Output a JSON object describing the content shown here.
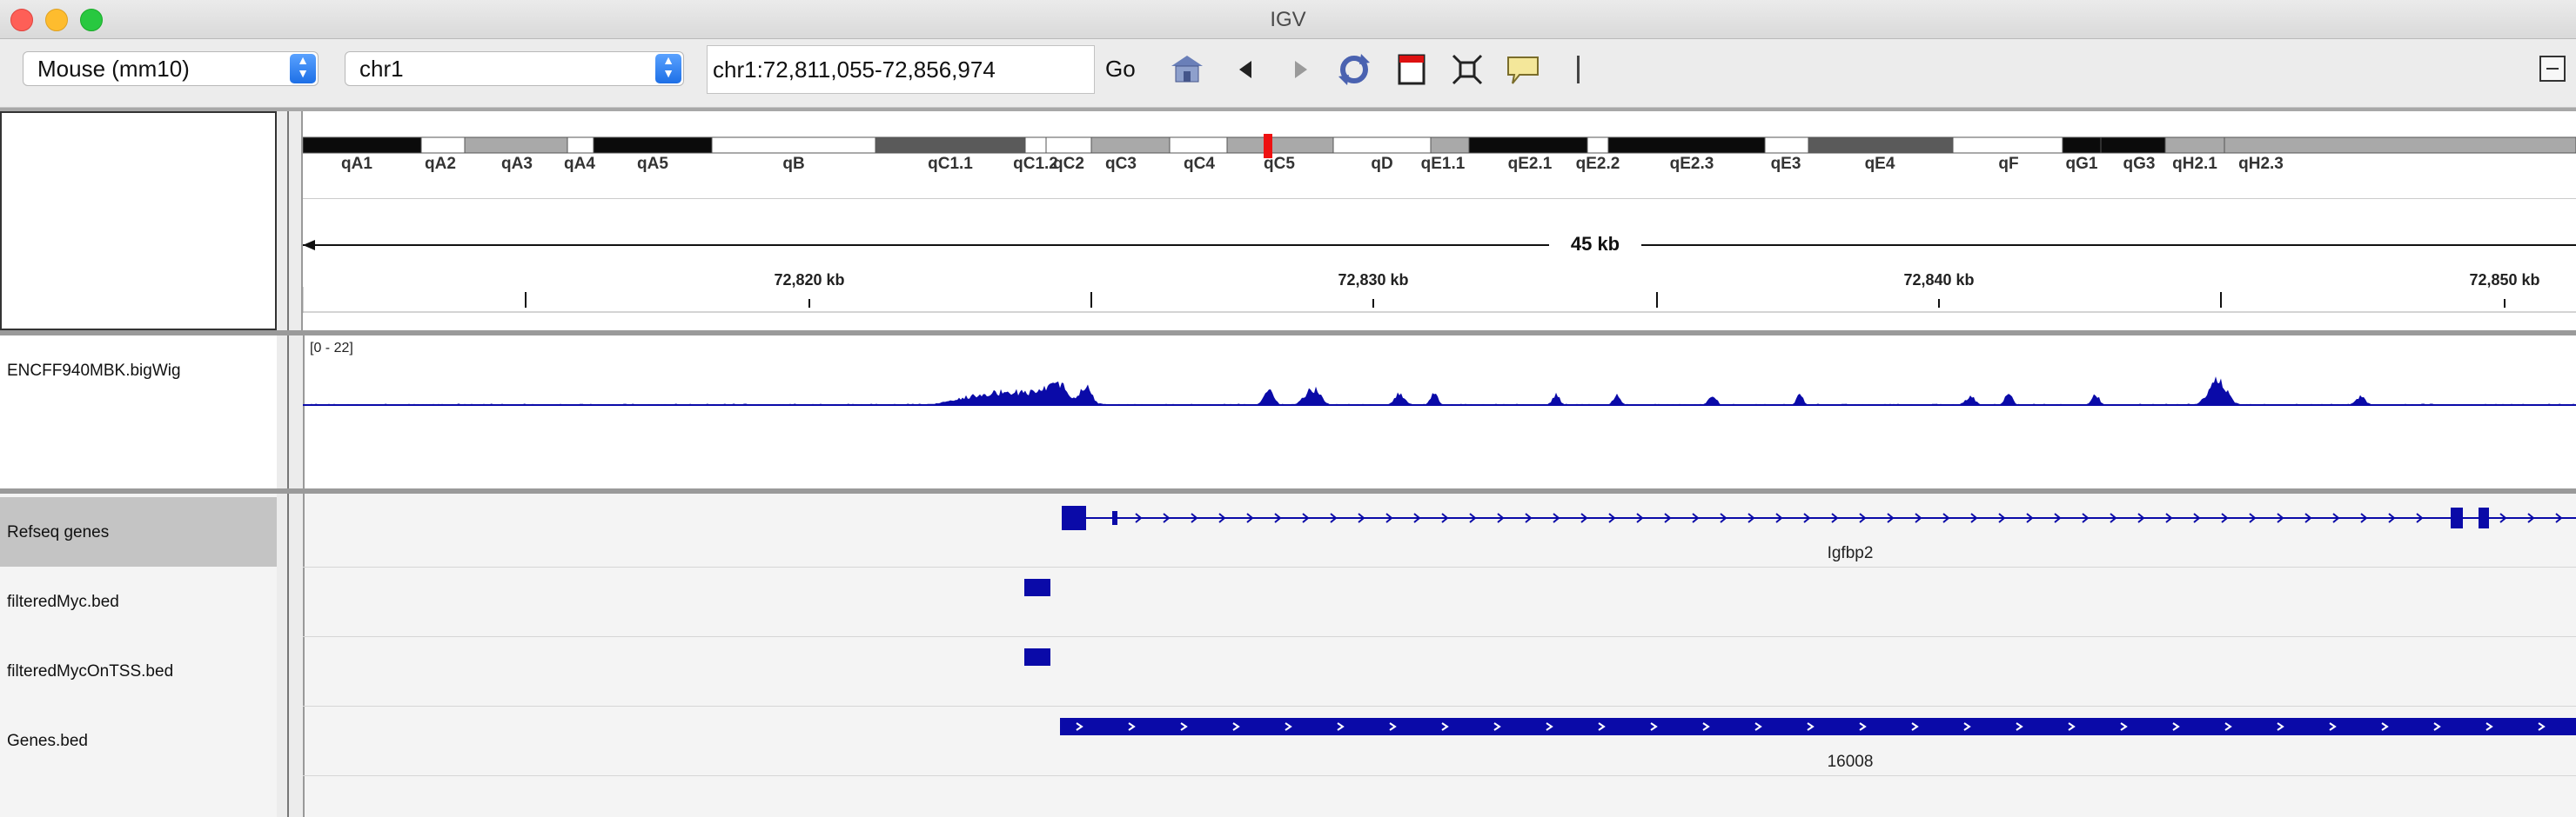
{
  "window": {
    "title": "IGV"
  },
  "toolbar": {
    "genome": "Mouse (mm10)",
    "chromosome": "chr1",
    "locus": "chr1:72,811,055-72,856,974",
    "go_label": "Go"
  },
  "ideogram": {
    "bands": [
      {
        "label": "qA1",
        "stain": "black"
      },
      {
        "label": "qA2",
        "stain": "white"
      },
      {
        "label": "qA3",
        "stain": "gray"
      },
      {
        "label": "qA4",
        "stain": "white"
      },
      {
        "label": "qA5",
        "stain": "black"
      },
      {
        "label": "qB",
        "stain": "white"
      },
      {
        "label": "qC1.1",
        "stain": "dark"
      },
      {
        "label": "qC1.2",
        "stain": "white"
      },
      {
        "label": "qC2",
        "stain": "white"
      },
      {
        "label": "qC3",
        "stain": "gray"
      },
      {
        "label": "qC4",
        "stain": "white"
      },
      {
        "label": "qC5",
        "stain": "gray"
      },
      {
        "label": "qD",
        "stain": "white"
      },
      {
        "label": "qE1.1",
        "stain": "gray"
      },
      {
        "label": "qE2.1",
        "stain": "black"
      },
      {
        "label": "qE2.2",
        "stain": "white"
      },
      {
        "label": "qE2.3",
        "stain": "black"
      },
      {
        "label": "qE3",
        "stain": "white"
      },
      {
        "label": "qE4",
        "stain": "dark"
      },
      {
        "label": "qF",
        "stain": "white"
      },
      {
        "label": "qG1",
        "stain": "black"
      },
      {
        "label": "qG3",
        "stain": "black"
      },
      {
        "label": "qH2.1",
        "stain": "gray"
      },
      {
        "label": "qH2.3",
        "stain": "gray"
      }
    ],
    "highlight_color": "#ee1111"
  },
  "ruler": {
    "span_label": "45 kb",
    "tick_labels": [
      "72,820 kb",
      "72,830 kb",
      "72,840 kb",
      "72,850 kb"
    ]
  },
  "tracks": [
    {
      "name": "ENCFF940MBK.bigWig",
      "range": "[0 - 22]"
    },
    {
      "name": "Refseq genes",
      "feature": "Igfbp2"
    },
    {
      "name": "filteredMyc.bed"
    },
    {
      "name": "filteredMycOnTSS.bed"
    },
    {
      "name": "Genes.bed",
      "feature": "16008"
    }
  ],
  "colors": {
    "feature": "#0a0aa8",
    "accent": "#1d6fe6"
  }
}
